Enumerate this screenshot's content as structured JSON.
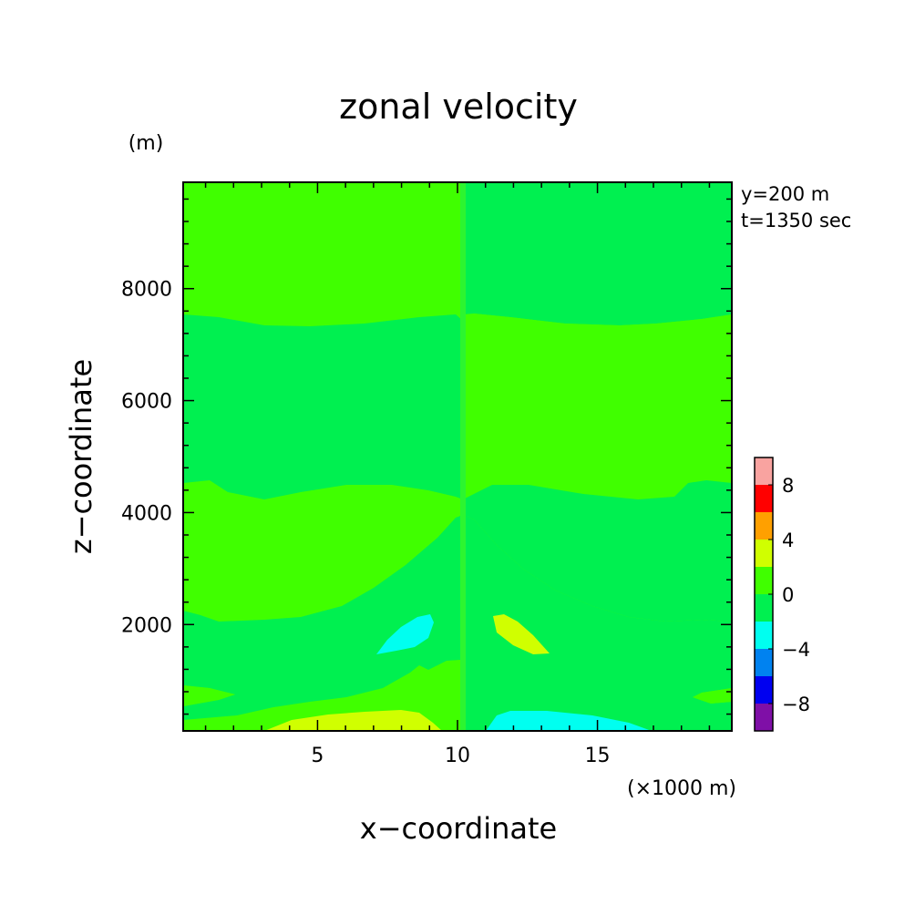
{
  "chart_data": {
    "type": "heatmap",
    "title": "zonal velocity",
    "xlabel": "x−coordinate",
    "ylabel": "z−coordinate",
    "x_unit": "(×1000 m)",
    "y_unit": "(m)",
    "annotation": [
      "y=200 m",
      "t=1350 sec"
    ],
    "xlim": [
      0.2,
      19.8
    ],
    "ylim": [
      100,
      9900
    ],
    "x_ticks": [
      5,
      10,
      15
    ],
    "y_ticks": [
      2000,
      4000,
      6000,
      8000
    ],
    "colorbar": {
      "tick_labels": [
        "8",
        "4",
        "0",
        "−4",
        "−8"
      ],
      "tick_values": [
        8,
        4,
        0,
        -4,
        -8
      ],
      "levels": [
        -10,
        -8,
        -6,
        -4,
        -2,
        0,
        2,
        4,
        6,
        8,
        10
      ],
      "colors": [
        "#7F0FA7",
        "#0000F0",
        "#0082F0",
        "#00FFF0",
        "#00F050",
        "#40FF00",
        "#D0FF00",
        "#FFA000",
        "#FF0000",
        "#F9A3A0"
      ]
    },
    "regions": [
      {
        "value_range": [
          0,
          2
        ],
        "color": "#40FF00",
        "layer": "background"
      },
      {
        "value_range": [
          -2,
          0
        ],
        "color": "#00F050",
        "layer": "band 4500-7600 m (left half), 4300-7600 m variations"
      },
      {
        "value_range": [
          -2,
          0
        ],
        "color": "#00F050",
        "layer": "upper right x>10, z>7600 m"
      },
      {
        "value_range": [
          -2,
          0
        ],
        "color": "#00F050",
        "layer": "lower band 600-2100 m"
      },
      {
        "value_range": [
          -4,
          -2
        ],
        "color": "#00FFF0",
        "layer": "cell near x=8-9, z=1400-2100 m"
      },
      {
        "value_range": [
          -4,
          -2
        ],
        "color": "#00FFF0",
        "layer": "near-surface x=11-17"
      },
      {
        "value_range": [
          2,
          4
        ],
        "color": "#D0FF00",
        "layer": "cell near x=11-13, z=1400-2200 m"
      },
      {
        "value_range": [
          2,
          4
        ],
        "color": "#D0FF00",
        "layer": "near-surface x=3-9"
      }
    ]
  }
}
